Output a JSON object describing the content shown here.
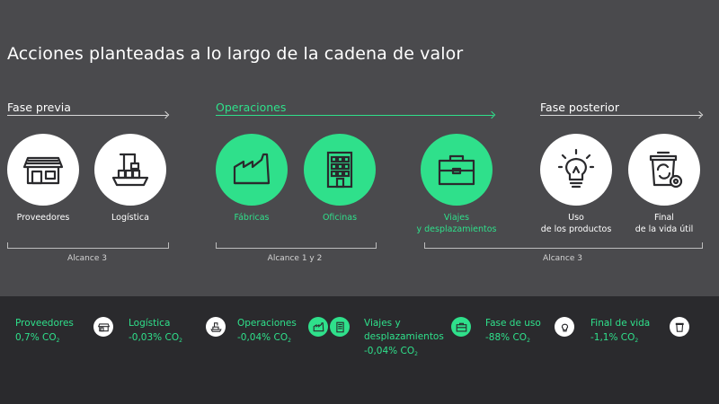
{
  "title": "Acciones planteadas a lo largo de la cadena de valor",
  "phases": {
    "previa": "Fase previa",
    "operaciones": "Operaciones",
    "posterior": "Fase posterior"
  },
  "items": {
    "proveedores": "Proveedores",
    "logistica": "Logística",
    "fabricas": "Fábricas",
    "oficinas": "Oficinas",
    "viajes_1": "Viajes",
    "viajes_2": "y desplazamientos",
    "uso_1": "Uso",
    "uso_2": "de los productos",
    "final_1": "Final",
    "final_2": "de la vida útil"
  },
  "scopes": {
    "left": "Alcance 3",
    "middle": "Alcance 1 y 2",
    "right": "Alcance 3"
  },
  "summary": {
    "proveedores": {
      "name": "Proveedores",
      "value": "0,7% CO",
      "sub": "2"
    },
    "logistica": {
      "name": "Logística",
      "value": "-0,03% CO",
      "sub": "2"
    },
    "operaciones": {
      "name": "Operaciones",
      "value": "-0,04% CO",
      "sub": "2"
    },
    "viajes": {
      "name_1": "Viajes y",
      "name_2": "desplazamientos",
      "value": "-0,04% CO",
      "sub": "2"
    },
    "fase_uso": {
      "name": "Fase de uso",
      "value": "-88% CO",
      "sub": "2"
    },
    "final_vida": {
      "name": "Final de vida",
      "value": "-1,1% CO",
      "sub": "2"
    }
  },
  "icons": {
    "proveedores": "warehouse-icon",
    "logistica": "cargo-ship-icon",
    "fabricas": "factory-icon",
    "oficinas": "office-building-icon",
    "viajes": "briefcase-icon",
    "uso": "lightbulb-icon",
    "final": "recycle-bin-icon"
  },
  "colors": {
    "background": "#4a4a4d",
    "bottom_band": "#2a2a2d",
    "accent_green": "#2fe08b",
    "white": "#ffffff",
    "icon_dark": "#2a2a2d"
  }
}
